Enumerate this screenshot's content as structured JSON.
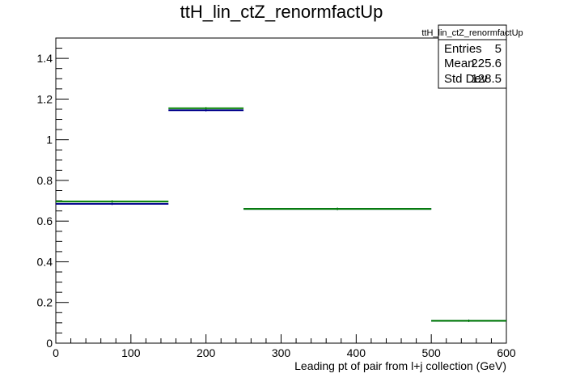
{
  "chart_data": {
    "type": "line",
    "title": "ttH_lin_ctZ_renormfactUp",
    "xlabel": "Leading pt of pair from l+j collection (GeV)",
    "ylabel": "",
    "xlim": [
      0,
      600
    ],
    "ylim": [
      0,
      1.5
    ],
    "x_ticks": [
      0,
      100,
      200,
      300,
      400,
      500,
      600
    ],
    "y_ticks": [
      0,
      0.2,
      0.4,
      0.6,
      0.8,
      1,
      1.2,
      1.4
    ],
    "x_tick_labels": [
      "0",
      "100",
      "200",
      "300",
      "400",
      "500",
      "600"
    ],
    "y_tick_labels": [
      "0",
      "0.2",
      "0.4",
      "0.6",
      "0.8",
      "1",
      "1.2",
      "1.4"
    ],
    "bin_edges": [
      0,
      150,
      250,
      500,
      600
    ],
    "series": [
      {
        "color": "#00008b",
        "values": [
          0.685,
          1.145,
          0.66,
          0.11
        ]
      },
      {
        "color": "#008000",
        "values": [
          0.697,
          1.155,
          0.66,
          0.11
        ]
      }
    ],
    "grid": false,
    "stats": {
      "name": "ttH_lin_ctZ_renormfactUp",
      "rows": [
        {
          "label": "Entries",
          "value": "5"
        },
        {
          "label": "Mean",
          "value": "225.6"
        },
        {
          "label": "Std Dev",
          "value": "128.5"
        }
      ]
    }
  }
}
